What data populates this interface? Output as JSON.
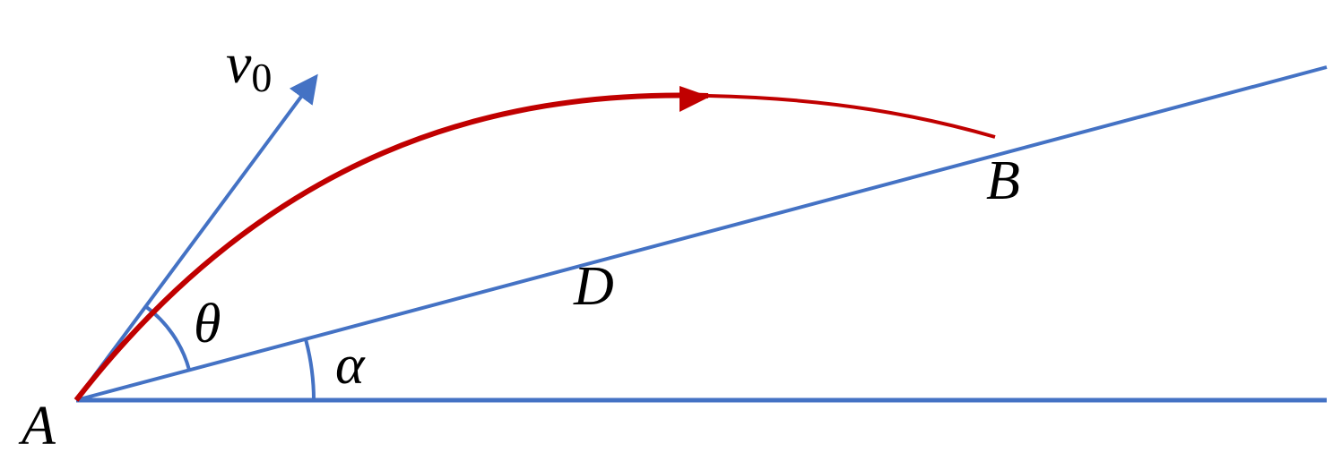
{
  "labels": {
    "velocity": "v",
    "velocity_subscript": "0",
    "angle_theta": "θ",
    "angle_alpha": "α",
    "point_a": "A",
    "point_b": "B",
    "point_d": "D"
  }
}
